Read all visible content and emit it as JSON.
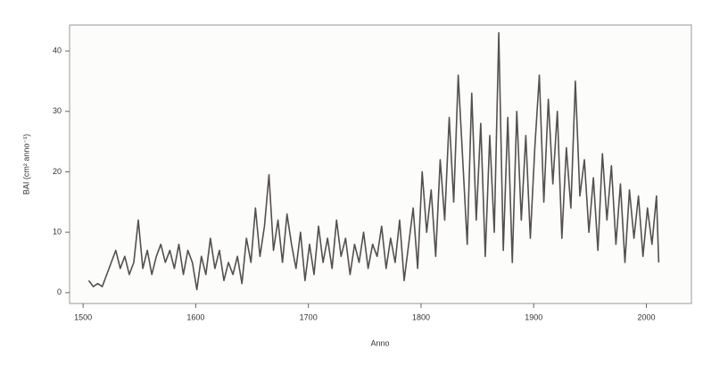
{
  "chart_data": {
    "type": "line",
    "xlabel": "Anno",
    "ylabel": "BAI (cm² anno⁻¹)",
    "x": [
      1505,
      1509,
      1513,
      1517,
      1521,
      1525,
      1529,
      1533,
      1537,
      1541,
      1545,
      1549,
      1553,
      1557,
      1561,
      1565,
      1569,
      1573,
      1577,
      1581,
      1585,
      1589,
      1593,
      1597,
      1601,
      1605,
      1609,
      1613,
      1617,
      1621,
      1625,
      1629,
      1633,
      1637,
      1641,
      1645,
      1649,
      1653,
      1657,
      1661,
      1665,
      1669,
      1673,
      1677,
      1681,
      1685,
      1689,
      1693,
      1697,
      1701,
      1705,
      1709,
      1713,
      1717,
      1721,
      1725,
      1729,
      1733,
      1737,
      1741,
      1745,
      1749,
      1753,
      1757,
      1761,
      1765,
      1769,
      1773,
      1777,
      1781,
      1785,
      1789,
      1793,
      1797,
      1801,
      1805,
      1809,
      1813,
      1817,
      1821,
      1825,
      1829,
      1833,
      1837,
      1841,
      1845,
      1849,
      1853,
      1857,
      1861,
      1865,
      1869,
      1873,
      1877,
      1881,
      1885,
      1889,
      1893,
      1897,
      1901,
      1905,
      1909,
      1913,
      1917,
      1921,
      1925,
      1929,
      1933,
      1937,
      1941,
      1945,
      1949,
      1953,
      1957,
      1961,
      1965,
      1969,
      1973,
      1977,
      1981,
      1985,
      1989,
      1993,
      1997,
      2001,
      2005,
      2009,
      2011
    ],
    "series": [
      {
        "name": "BAI",
        "color": "#555050",
        "values": [
          2,
          1,
          1.5,
          1,
          3,
          5,
          7,
          4,
          6,
          3,
          5,
          12,
          4,
          7,
          3,
          6,
          8,
          5,
          7,
          4,
          8,
          3,
          7,
          5,
          0.5,
          6,
          3,
          9,
          4,
          7,
          2,
          5,
          3,
          6,
          1.5,
          9,
          5,
          14,
          6,
          11,
          19.5,
          7,
          12,
          5,
          13,
          8,
          4,
          10,
          2,
          8,
          3,
          11,
          5,
          9,
          4,
          12,
          6,
          9,
          3,
          8,
          5,
          10,
          4,
          8,
          6,
          11,
          4,
          9,
          5,
          12,
          2,
          8,
          14,
          4,
          20,
          10,
          17,
          6,
          22,
          12,
          29,
          15,
          36,
          22,
          8,
          33,
          12,
          28,
          6,
          26,
          10,
          43,
          7,
          29,
          5,
          30,
          12,
          26,
          9,
          24,
          36,
          15,
          32,
          18,
          30,
          9,
          24,
          14,
          35,
          16,
          22,
          10,
          19,
          7,
          23,
          12,
          21,
          8,
          18,
          5,
          17,
          9,
          16,
          6,
          14,
          8,
          16,
          5
        ]
      }
    ],
    "xlim": [
      1488,
      2040
    ],
    "ylim": [
      -1.8,
      44.3
    ],
    "xticks": [
      1500,
      1600,
      1700,
      1800,
      1900,
      2000
    ],
    "yticks": [
      0,
      10,
      20,
      30,
      40
    ]
  }
}
